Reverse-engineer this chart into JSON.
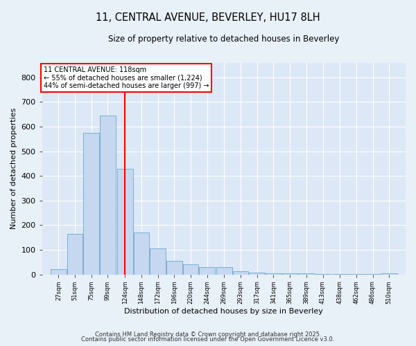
{
  "title1": "11, CENTRAL AVENUE, BEVERLEY, HU17 8LH",
  "title2": "Size of property relative to detached houses in Beverley",
  "xlabel": "Distribution of detached houses by size in Beverley",
  "ylabel": "Number of detached properties",
  "bar_color": "#c5d8f0",
  "bar_edge_color": "#7aadd4",
  "bg_color": "#dce8f5",
  "fig_color": "#e8f0f8",
  "grid_color": "#ffffff",
  "vline_color": "red",
  "vline_x": 124,
  "annotation_title": "11 CENTRAL AVENUE: 118sqm",
  "annotation_line1": "← 55% of detached houses are smaller (1,224)",
  "annotation_line2": "44% of semi-detached houses are larger (997) →",
  "bins": [
    27,
    51,
    75,
    99,
    124,
    148,
    172,
    196,
    220,
    244,
    269,
    293,
    317,
    341,
    365,
    389,
    413,
    438,
    462,
    486,
    510
  ],
  "values": [
    20,
    165,
    575,
    645,
    430,
    170,
    105,
    55,
    40,
    30,
    30,
    14,
    8,
    5,
    4,
    3,
    2,
    1,
    1,
    1,
    4
  ],
  "ylim": [
    0,
    860
  ],
  "yticks": [
    0,
    100,
    200,
    300,
    400,
    500,
    600,
    700,
    800
  ],
  "footer1": "Contains HM Land Registry data © Crown copyright and database right 2025.",
  "footer2": "Contains public sector information licensed under the Open Government Licence v3.0."
}
